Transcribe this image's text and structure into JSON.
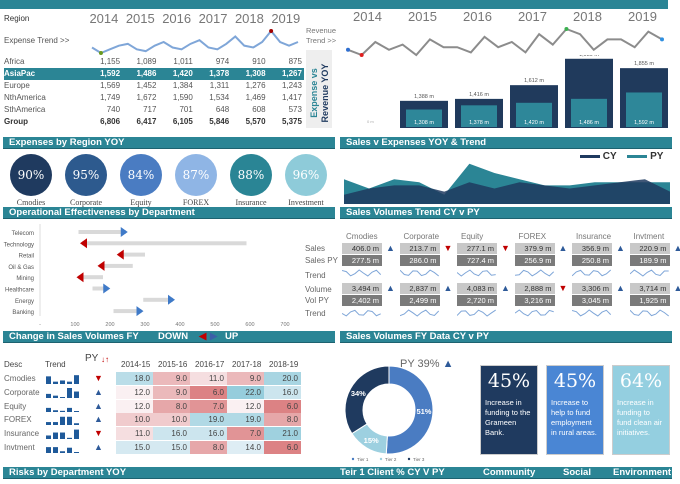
{
  "region_table": {
    "header": "Region",
    "years": [
      "2014",
      "2015",
      "2016",
      "2017",
      "2018",
      "2019"
    ],
    "trend_label": "Expense Trend >>",
    "rows": [
      {
        "name": "Africa",
        "values": [
          "1,155",
          "1,089",
          "1,011",
          "974",
          "910",
          "875"
        ]
      },
      {
        "name": "AsiaPac",
        "values": [
          "1,592",
          "1,486",
          "1,420",
          "1,378",
          "1,308",
          "1,267"
        ]
      },
      {
        "name": "Europe",
        "values": [
          "1,569",
          "1,452",
          "1,384",
          "1,311",
          "1,276",
          "1,243"
        ]
      },
      {
        "name": "NthAmerica",
        "values": [
          "1,749",
          "1,672",
          "1,590",
          "1,534",
          "1,469",
          "1,417"
        ]
      },
      {
        "name": "SthAmerica",
        "values": [
          "740",
          "717",
          "701",
          "648",
          "608",
          "573"
        ]
      },
      {
        "name": "Group",
        "values": [
          "6,806",
          "6,417",
          "6,105",
          "5,846",
          "5,570",
          "5,375"
        ]
      }
    ],
    "expense_trend": [
      5,
      2,
      4,
      6,
      7,
      4,
      3,
      6,
      8,
      5,
      4,
      7,
      9,
      5,
      4,
      7,
      11,
      6,
      5,
      8,
      14,
      8,
      6,
      8
    ]
  },
  "revenue": {
    "trend_label_1": "Revenue",
    "trend_label_2": "Trend >>",
    "side_label_1": "Expense vs",
    "side_label_2": "Revenue YOY",
    "years": [
      "2014",
      "2015",
      "2016",
      "2017",
      "2018",
      "2019"
    ],
    "trend": [
      6,
      4,
      9,
      6,
      8,
      4,
      10,
      7,
      7,
      5,
      11,
      7,
      9,
      5,
      12,
      8,
      14,
      12,
      6,
      10,
      10,
      7,
      13,
      10
    ],
    "bars": {
      "outer": [
        1388,
        1416,
        1612,
        1989,
        1855
      ],
      "inner": [
        1308,
        1378,
        1420,
        1486,
        1592
      ],
      "outer_labels": [
        "1,388 m",
        "1,416 m",
        "1,612 m",
        "1,989 m",
        "1,855 m"
      ],
      "inner_labels": [
        "1,308 m",
        "1,378 m",
        "1,420 m",
        "1,486 m",
        "1,592 m"
      ],
      "zero_label": "0 m"
    }
  },
  "sections": {
    "expenses_by_region": "Expenses by Region YOY",
    "sales_v_expenses": "Sales v Expenses YOY & Trend",
    "op_effectiveness": "Operational Effectiveness by Department",
    "sales_vol_trend": "Sales Volumes Trend CY v PY",
    "change_sales": "Change in Sales Volumes FY",
    "down": "DOWN",
    "up": "UP",
    "sales_vol_fy": "Sales Volumes FY Data CY v PY",
    "risks": "Risks by Department YOY",
    "tier1": "Teir 1 Client % CY V PY",
    "community": "Community",
    "social": "Social",
    "environment": "Environment"
  },
  "circles": [
    {
      "pct": "90%",
      "label": "Cmodies",
      "color": "#1f3a5f"
    },
    {
      "pct": "95%",
      "label": "Corporate",
      "color": "#2d5a8e"
    },
    {
      "pct": "84%",
      "label": "Equity",
      "color": "#4a7cc2"
    },
    {
      "pct": "87%",
      "label": "FOREX",
      "color": "#8fb5e5"
    },
    {
      "pct": "88%",
      "label": "Insurance",
      "color": "#2a8595"
    },
    {
      "pct": "96%",
      "label": "Investment",
      "color": "#8ecbd9"
    }
  ],
  "area_chart": {
    "legend": [
      "CY",
      "PY"
    ],
    "colors": {
      "CY": "#1f3a5f",
      "PY": "#2b8595"
    },
    "cy": [
      3,
      5,
      6,
      6,
      4,
      7,
      5,
      7,
      6,
      5,
      6,
      7,
      8,
      4
    ],
    "py": [
      8,
      5,
      8,
      7,
      3,
      13,
      10,
      8,
      6,
      6,
      7,
      7,
      7,
      7
    ]
  },
  "op_chart": {
    "departments": [
      "Telecom",
      "Technology",
      "Retail",
      "Oil & Gas",
      "Mining",
      "Healthcare",
      "Energy",
      "Banking"
    ],
    "start": [
      110,
      590,
      300,
      265,
      180,
      150,
      295,
      210
    ],
    "end": [
      245,
      120,
      225,
      170,
      110,
      195,
      380,
      290
    ],
    "ticks": [
      "-",
      "100",
      "200",
      "300",
      "400",
      "500",
      "600",
      "700"
    ]
  },
  "cards": {
    "row_labels": [
      "Sales",
      "Sales PY",
      "Trend",
      "Volume",
      "Vol PY",
      "Trend"
    ],
    "items": [
      {
        "name": "Cmodies",
        "sales": "406.0 m",
        "sales_py": "277.5 m",
        "s_dir": "up",
        "vol": "3,494 m",
        "vol_py": "2,402 m",
        "v_dir": "up"
      },
      {
        "name": "Corporate",
        "sales": "213.7 m",
        "sales_py": "286.0 m",
        "s_dir": "down",
        "vol": "2,837 m",
        "vol_py": "2,499 m",
        "v_dir": "up"
      },
      {
        "name": "Equity",
        "sales": "277.1 m",
        "sales_py": "727.4 m",
        "s_dir": "down",
        "vol": "4,083 m",
        "vol_py": "2,720 m",
        "v_dir": "up"
      },
      {
        "name": "FOREX",
        "sales": "379.9 m",
        "sales_py": "256.9 m",
        "s_dir": "up",
        "vol": "2,888 m",
        "vol_py": "3,216 m",
        "v_dir": "down"
      },
      {
        "name": "Insurance",
        "sales": "356.9 m",
        "sales_py": "250.8 m",
        "s_dir": "up",
        "vol": "3,306 m",
        "vol_py": "3,045 m",
        "v_dir": "up"
      },
      {
        "name": "Invtment",
        "sales": "220.9 m",
        "sales_py": "189.9 m",
        "s_dir": "up",
        "vol": "3,714 m",
        "vol_py": "1,925 m",
        "v_dir": "up"
      }
    ]
  },
  "heat_table": {
    "headers": [
      "Desc",
      "Trend",
      "PY",
      "2014-15",
      "2015-16",
      "2016-17",
      "2017-18",
      "2018-19"
    ],
    "sort_icon": "↓↑",
    "rows": [
      {
        "desc": "Cmodies",
        "dir": "down",
        "values": [
          "18.0",
          "9.0",
          "11.0",
          "9.0",
          "20.0"
        ]
      },
      {
        "desc": "Corporate",
        "dir": "up",
        "values": [
          "12.0",
          "9.0",
          "6.0",
          "22.0",
          "16.0"
        ]
      },
      {
        "desc": "Equity",
        "dir": "up",
        "values": [
          "12.0",
          "8.0",
          "7.0",
          "12.0",
          "6.0"
        ]
      },
      {
        "desc": "FOREX",
        "dir": "up",
        "values": [
          "10.0",
          "10.0",
          "19.0",
          "19.0",
          "8.0"
        ]
      },
      {
        "desc": "Insurance",
        "dir": "down",
        "values": [
          "11.0",
          "16.0",
          "16.0",
          "7.0",
          "21.0"
        ]
      },
      {
        "desc": "Invtment",
        "dir": "up",
        "values": [
          "15.0",
          "15.0",
          "8.0",
          "14.0",
          "6.0"
        ]
      }
    ]
  },
  "donut": {
    "title": "PY 39%",
    "slices": [
      {
        "name": "Tier 1",
        "value": 51,
        "label": "51%",
        "color": "#4a7cc2"
      },
      {
        "name": "Tier 2",
        "value": 15,
        "label": "15%",
        "color": "#9dd0e0"
      },
      {
        "name": "Tier 3",
        "value": 34,
        "label": "34%",
        "color": "#1f3a5f"
      }
    ]
  },
  "boxes": [
    {
      "pct": "45%",
      "text": "Increase in funding to the Grameen Bank.",
      "color": "#1f3a5f"
    },
    {
      "pct": "45%",
      "text": "Increase to help to fund employment in rural areas.",
      "color": "#4a86d4"
    },
    {
      "pct": "64%",
      "text": "Increase in funding to fund clean air initiatives.",
      "color": "#94cfe0"
    }
  ]
}
